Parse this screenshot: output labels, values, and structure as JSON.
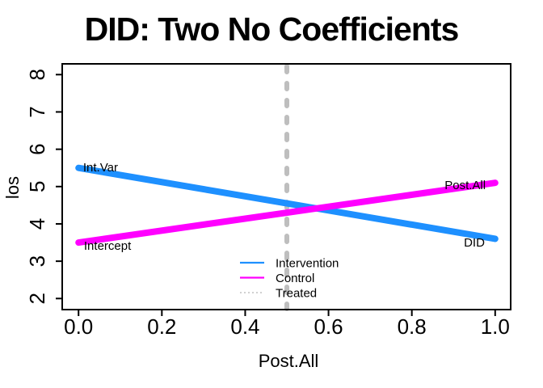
{
  "title": "DID: Two No Coefficients",
  "chart_data": {
    "type": "line",
    "title": "DID: Two No Coefficients",
    "xlabel": "Post.All",
    "ylabel": "los",
    "xlim": [
      0,
      1
    ],
    "ylim": [
      2,
      8
    ],
    "grid": false,
    "background": "#FFFFFF",
    "axis_color": "#000000",
    "x_ticks": {
      "values": [
        0,
        0.2,
        0.4,
        0.6,
        0.8,
        1.0
      ],
      "labels": [
        "0.0",
        "0.2",
        "0.4",
        "0.6",
        "0.8",
        "1.0"
      ]
    },
    "y_ticks": {
      "values": [
        2,
        3,
        4,
        5,
        6,
        7,
        8
      ],
      "labels": [
        "2",
        "3",
        "4",
        "5",
        "6",
        "7",
        "8"
      ]
    },
    "series": [
      {
        "name": "Intervention",
        "color": "#1E90FF",
        "x": [
          0,
          1
        ],
        "y": [
          5.5,
          3.6
        ],
        "line_width": 8
      },
      {
        "name": "Control",
        "color": "#FF00FF",
        "x": [
          0,
          1
        ],
        "y": [
          3.5,
          5.1
        ],
        "line_width": 8
      }
    ],
    "vline": {
      "name": "Treated",
      "x": 0.5,
      "color": "#BEBEBE",
      "style": "dashed",
      "line_width": 6
    },
    "annotations": [
      {
        "text": "Int.Var",
        "x": 0.011,
        "y": 5.41,
        "anchor": "start"
      },
      {
        "text": "Intercept",
        "x": 0.013,
        "y": 3.31,
        "anchor": "start"
      },
      {
        "text": "Post.All",
        "x": 0.928,
        "y": 4.93,
        "anchor": "middle"
      },
      {
        "text": "DID",
        "x": 0.95,
        "y": 3.39,
        "anchor": "middle"
      }
    ],
    "legend": {
      "position": "bottom-center",
      "box": false,
      "entries": [
        {
          "label": "Intervention",
          "color": "#1E90FF",
          "style": "solid"
        },
        {
          "label": "Control",
          "color": "#FF00FF",
          "style": "solid"
        },
        {
          "label": "Treated",
          "color": "#C0C0C0",
          "style": "dotted"
        }
      ]
    }
  }
}
